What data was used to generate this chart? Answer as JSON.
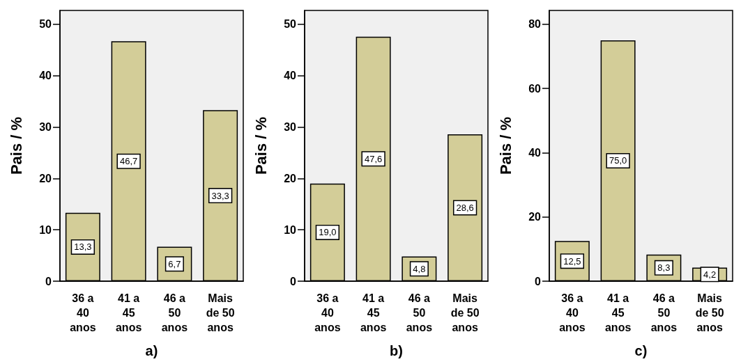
{
  "chart_data": [
    {
      "type": "bar",
      "xlabel": "a)",
      "ylabel": "Pais / %",
      "categories": [
        "36 a\n40\nanos",
        "41 a\n45\nanos",
        "46 a\n50\nanos",
        "Mais\nde 50\nanos"
      ],
      "values": [
        13.3,
        46.7,
        6.7,
        33.3
      ],
      "value_labels": [
        "13,3",
        "46,7",
        "6,7",
        "33,3"
      ],
      "color": "#d3cd98",
      "ylim": [
        0,
        52.7
      ],
      "yticks": [
        0,
        10,
        20,
        30,
        40,
        50
      ]
    },
    {
      "type": "bar",
      "xlabel": "b)",
      "ylabel": "Pais / %",
      "categories": [
        "36 a\n40\nanos",
        "41 a\n45\nanos",
        "46 a\n50\nanos",
        "Mais\nde 50\nanos"
      ],
      "values": [
        19.0,
        47.6,
        4.8,
        28.6
      ],
      "value_labels": [
        "19,0",
        "47,6",
        "4,8",
        "28,6"
      ],
      "color": "#d3cd98",
      "ylim": [
        0,
        52.7
      ],
      "yticks": [
        0,
        10,
        20,
        30,
        40,
        50
      ]
    },
    {
      "type": "bar",
      "xlabel": "c)",
      "ylabel": "Pais / %",
      "categories": [
        "36 a\n40\nanos",
        "41 a\n45\nanos",
        "46 a\n50\nanos",
        "Mais\nde 50\nanos"
      ],
      "values": [
        12.5,
        75.0,
        8.3,
        4.2
      ],
      "value_labels": [
        "12,5",
        "75,0",
        "8,3",
        "4,2"
      ],
      "color": "#d3cd98",
      "ylim": [
        0,
        84.3
      ],
      "yticks": [
        0,
        20,
        40,
        60,
        80
      ]
    }
  ]
}
